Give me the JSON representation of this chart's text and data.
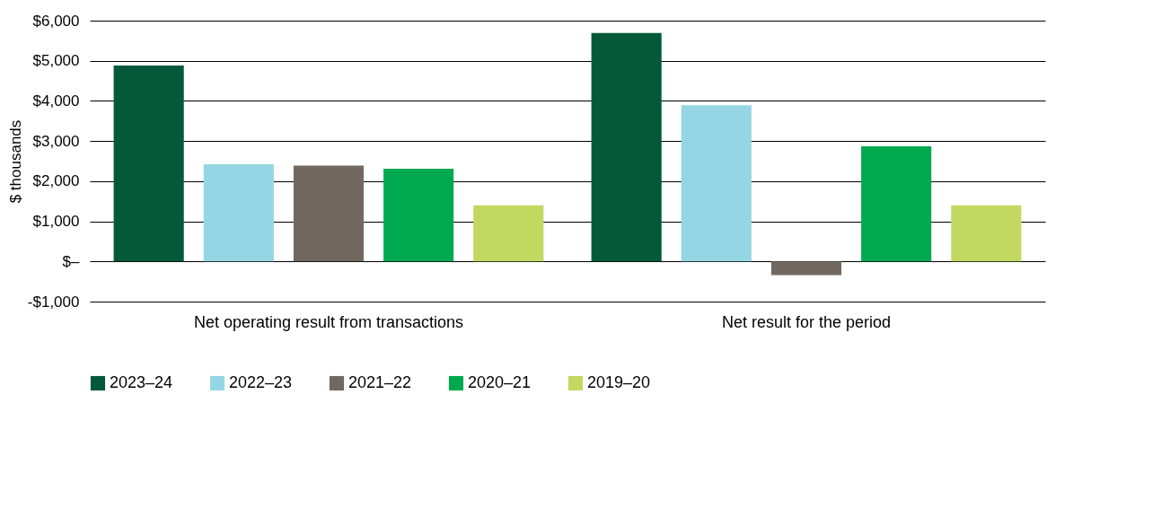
{
  "chart_data": {
    "type": "bar",
    "ylabel": "$ thousands",
    "categories": [
      "Net operating result from transactions",
      "Net result for the period"
    ],
    "series": [
      {
        "name": "2023–24",
        "color": "#04593b",
        "values": [
          4880,
          5690
        ]
      },
      {
        "name": "2022–23",
        "color": "#95d6e4",
        "values": [
          2420,
          3890
        ]
      },
      {
        "name": "2021–22",
        "color": "#716860",
        "values": [
          2390,
          -340
        ]
      },
      {
        "name": "2020–21",
        "color": "#00a94f",
        "values": [
          2310,
          2870
        ]
      },
      {
        "name": "2019–20",
        "color": "#c1d961",
        "values": [
          1400,
          1400
        ]
      }
    ],
    "ylim": [
      -1000,
      6000
    ],
    "yticks": [
      {
        "value": -1000,
        "label": "-$1,000"
      },
      {
        "value": 0,
        "label": "$–"
      },
      {
        "value": 1000,
        "label": "$1,000"
      },
      {
        "value": 2000,
        "label": "$2,000"
      },
      {
        "value": 3000,
        "label": "$3,000"
      },
      {
        "value": 4000,
        "label": "$4,000"
      },
      {
        "value": 5000,
        "label": "$5,000"
      },
      {
        "value": 6000,
        "label": "$6,000"
      }
    ],
    "grid": "y",
    "legend": "bottom left"
  }
}
